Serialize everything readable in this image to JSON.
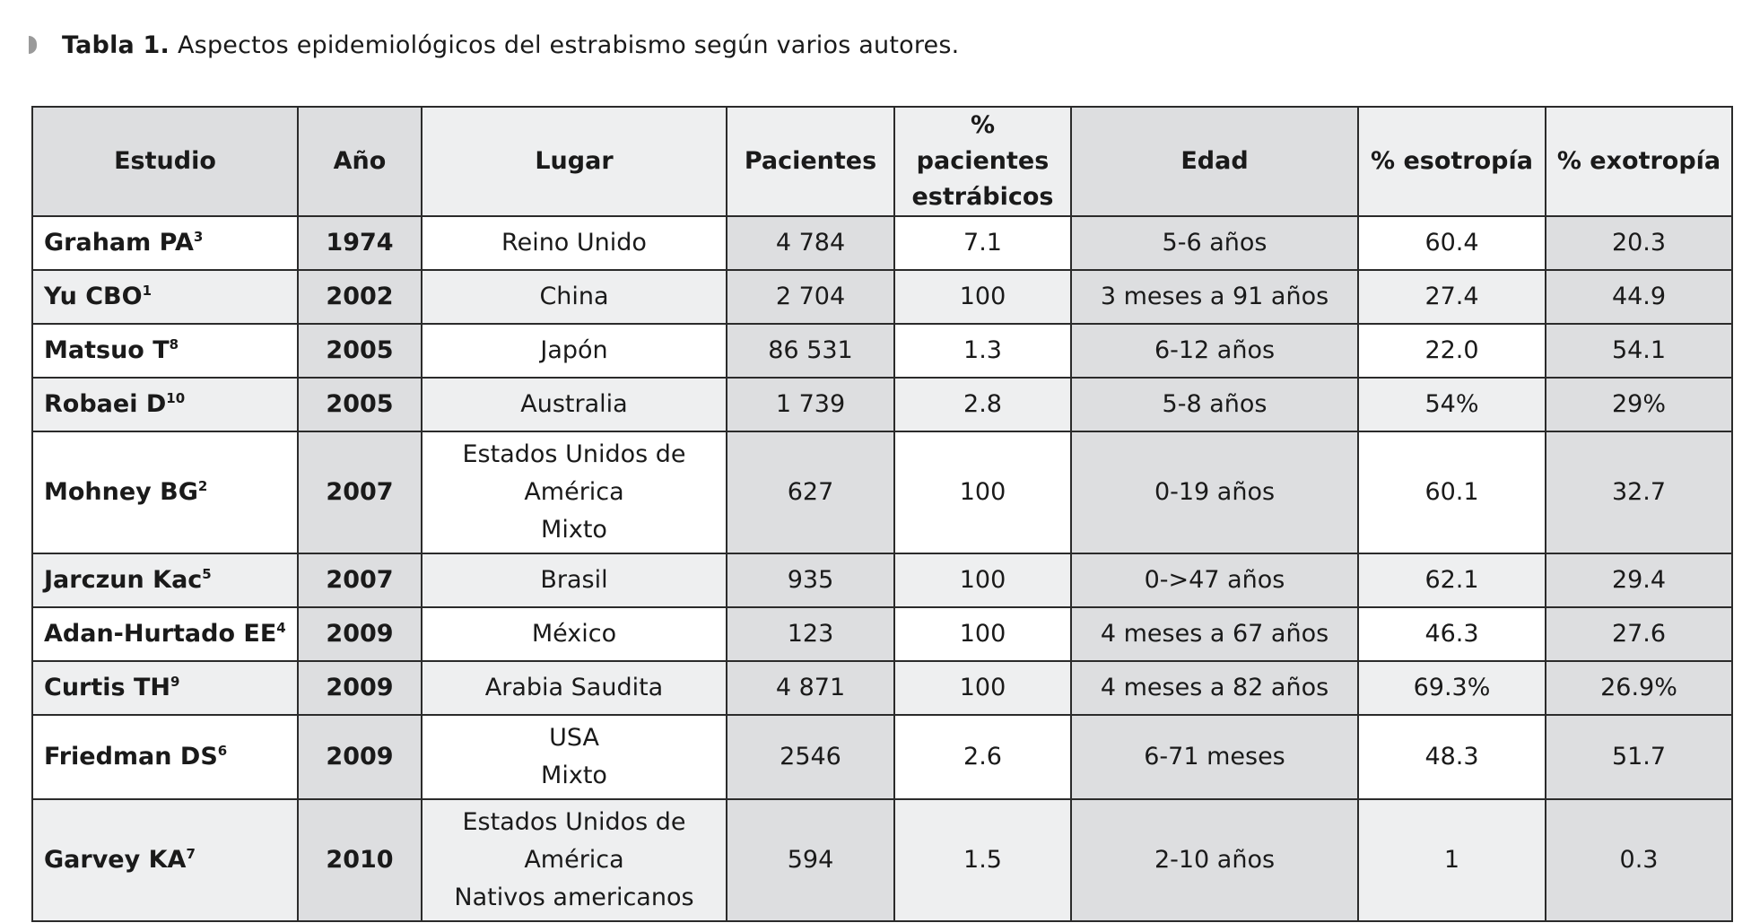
{
  "caption": {
    "label": "Tabla 1.",
    "text": "Aspectos epidemiológicos del estrabismo según varios autores."
  },
  "table": {
    "headers": {
      "estudio": "Estudio",
      "anio": "Año",
      "lugar": "Lugar",
      "pacientes": "Pacientes",
      "pct_estrabicos_line1": "% pacientes",
      "pct_estrabicos_line2": "estrábicos",
      "edad": "Edad",
      "esotropia": "% esotropía",
      "exotropia": "% exotropía"
    },
    "rows": [
      {
        "estudio": "Graham PA",
        "ref": "3",
        "anio": "1974",
        "lugar1": "Reino Unido",
        "lugar2": "",
        "lugar3": "",
        "pacientes": "4 784",
        "pct": "7.1",
        "edad": "5-6 años",
        "eso": "60.4",
        "exo": "20.3"
      },
      {
        "estudio": "Yu CBO",
        "ref": "1",
        "anio": "2002",
        "lugar1": "China",
        "lugar2": "",
        "lugar3": "",
        "pacientes": "2 704",
        "pct": "100",
        "edad": "3 meses a 91 años",
        "eso": "27.4",
        "exo": "44.9"
      },
      {
        "estudio": "Matsuo T",
        "ref": "8",
        "anio": "2005",
        "lugar1": "Japón",
        "lugar2": "",
        "lugar3": "",
        "pacientes": "86 531",
        "pct": "1.3",
        "edad": "6-12 años",
        "eso": "22.0",
        "exo": "54.1"
      },
      {
        "estudio": "Robaei D",
        "ref": "10",
        "anio": "2005",
        "lugar1": "Australia",
        "lugar2": "",
        "lugar3": "",
        "pacientes": "1 739",
        "pct": "2.8",
        "edad": "5-8 años",
        "eso": "54%",
        "exo": "29%"
      },
      {
        "estudio": "Mohney BG",
        "ref": "2",
        "anio": "2007",
        "lugar1": "Estados Unidos de",
        "lugar2": "América",
        "lugar3": "Mixto",
        "pacientes": "627",
        "pct": "100",
        "edad": "0-19 años",
        "eso": "60.1",
        "exo": "32.7"
      },
      {
        "estudio": " Jarczun Kac",
        "ref": "5",
        "anio": "2007",
        "lugar1": "Brasil",
        "lugar2": "",
        "lugar3": "",
        "pacientes": "935",
        "pct": "100",
        "edad": "0->47 años",
        "eso": "62.1",
        "exo": "29.4"
      },
      {
        "estudio": "Adan-Hurtado EE",
        "ref": "4",
        "anio": "2009",
        "lugar1": "México",
        "lugar2": "",
        "lugar3": "",
        "pacientes": "123",
        "pct": "100",
        "edad": "4 meses a 67 años",
        "eso": "46.3",
        "exo": "27.6"
      },
      {
        "estudio": "Curtis TH",
        "ref": "9",
        "anio": "2009",
        "lugar1": "Arabia Saudita",
        "lugar2": "",
        "lugar3": "",
        "pacientes": "4 871",
        "pct": "100",
        "edad": "4 meses a 82 años",
        "eso": "69.3%",
        "exo": "26.9%"
      },
      {
        "estudio": "Friedman DS",
        "ref": "6",
        "anio": "2009",
        "lugar1": "USA",
        "lugar2": "Mixto",
        "lugar3": "",
        "pacientes": "2546",
        "pct": "2.6",
        "edad": "6-71 meses",
        "eso": "48.3",
        "exo": "51.7"
      },
      {
        "estudio": "Garvey KA",
        "ref": "7",
        "anio": "2010",
        "lugar1": "Estados Unidos de",
        "lugar2": "América",
        "lugar3": "Nativos americanos",
        "pacientes": "594",
        "pct": "1.5",
        "edad": "2-10 años",
        "eso": "1",
        "exo": "0.3"
      }
    ]
  },
  "colors": {
    "shade": "#dddee0",
    "light": "#eeeff0",
    "border": "#2b2b2b"
  }
}
